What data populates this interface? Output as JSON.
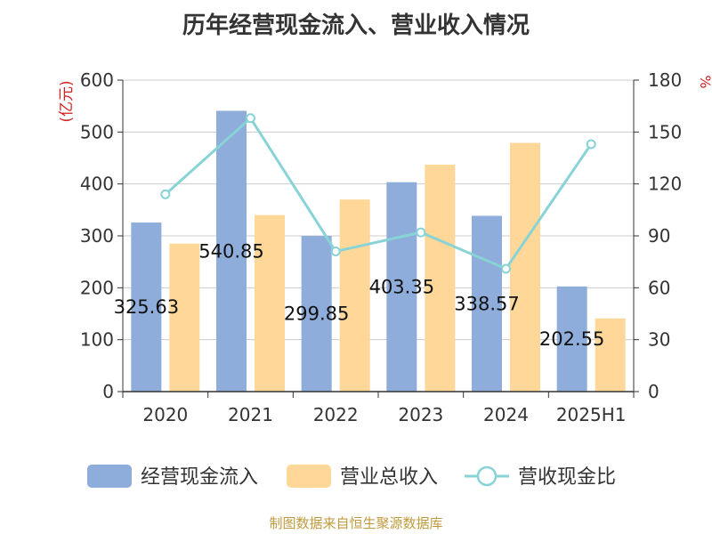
{
  "chart_data": {
    "type": "bar",
    "title": "历年经营现金流入、营业收入情况",
    "categories": [
      "2020",
      "2021",
      "2022",
      "2023",
      "2024",
      "2025H1"
    ],
    "series": [
      {
        "name": "经营现金流入",
        "kind": "bar",
        "axis": "left",
        "color": "#8eaddb",
        "values": [
          325.63,
          540.85,
          299.85,
          403.35,
          338.57,
          202.55
        ],
        "labels": [
          "325.63",
          "540.85",
          "299.85",
          "403.35",
          "338.57",
          "202.55"
        ]
      },
      {
        "name": "营业总收入",
        "kind": "bar",
        "axis": "left",
        "color": "#ffd899",
        "values": [
          285,
          340,
          370,
          437,
          479,
          141
        ]
      },
      {
        "name": "营收现金比",
        "kind": "line",
        "axis": "right",
        "color": "#88d3d6",
        "values": [
          114,
          158,
          81,
          92,
          71,
          143
        ]
      }
    ],
    "y_left": {
      "unit": "(亿元)",
      "ylim": [
        0,
        600
      ],
      "ticks": [
        "0",
        "100",
        "200",
        "300",
        "400",
        "500",
        "600"
      ]
    },
    "y_right": {
      "unit": "%",
      "ylim": [
        0,
        180
      ],
      "ticks": [
        "0",
        "30",
        "60",
        "90",
        "120",
        "150",
        "180"
      ]
    },
    "grid": true,
    "legend": "bottom"
  },
  "source": "制图数据来自恒生聚源数据库",
  "colors": {
    "axis": "#333333",
    "grid": "#cccccc",
    "unit": "#d22222",
    "source": "#c09a3e"
  }
}
